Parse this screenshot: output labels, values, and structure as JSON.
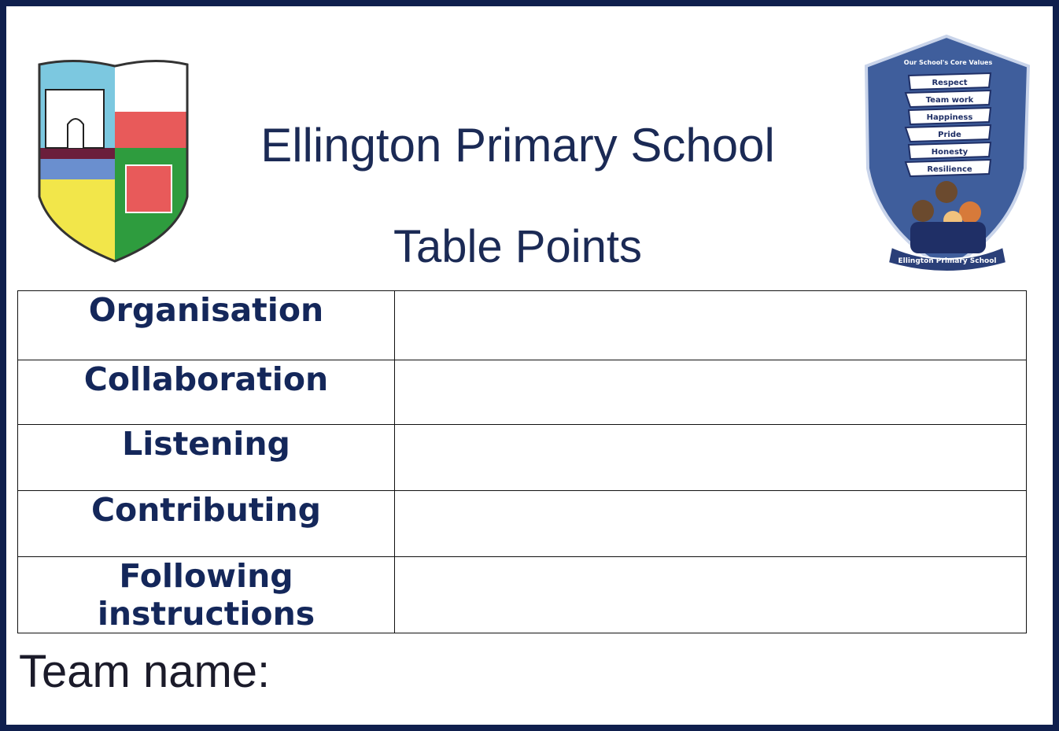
{
  "header": {
    "title": "Ellington Primary School",
    "subtitle": "Table Points"
  },
  "crest": {
    "heading": "Our School's Core Values",
    "values": [
      "Respect",
      "Team work",
      "Happiness",
      "Pride",
      "Honesty",
      "Resilience"
    ],
    "banner": "Ellington Primary School"
  },
  "table": {
    "rows": [
      {
        "label": "Organisation"
      },
      {
        "label": "Collaboration"
      },
      {
        "label": "Listening"
      },
      {
        "label": "Contributing"
      },
      {
        "label": "Following instructions"
      }
    ]
  },
  "footer": {
    "team_label": "Team name:"
  }
}
